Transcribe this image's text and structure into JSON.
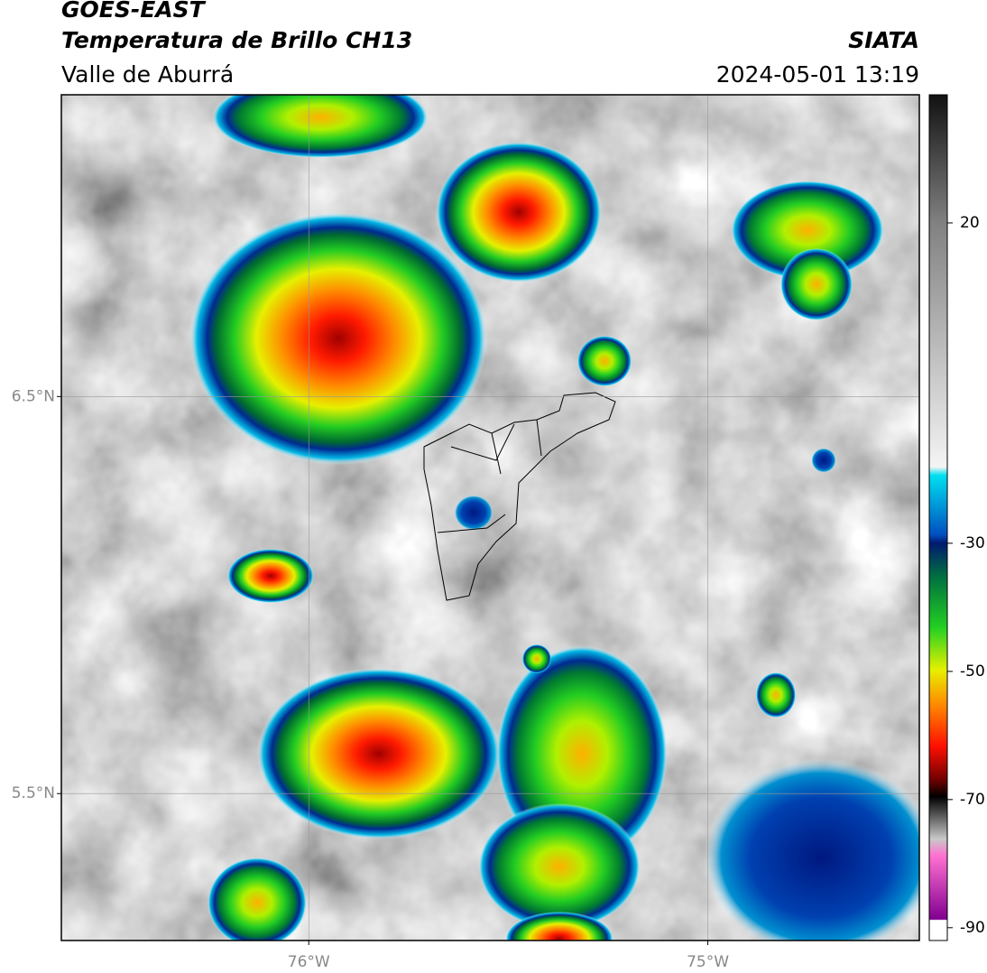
{
  "header": {
    "title": "GOES-EAST",
    "subtitle": "Temperatura de Brillo CH13",
    "region": "Valle de Aburrá",
    "source": "SIATA",
    "datetime": "2024-05-01 13:19"
  },
  "map": {
    "lat_range": [
      5.13,
      7.26
    ],
    "lon_range": [
      -76.62,
      -74.47
    ],
    "lat_ticks": [
      {
        "value": 6.5,
        "label": "6.5°N"
      },
      {
        "value": 5.5,
        "label": "5.5°N"
      }
    ],
    "lon_ticks": [
      {
        "value": -76,
        "label": "76°W"
      },
      {
        "value": -75,
        "label": "75°W"
      }
    ]
  },
  "colorbar": {
    "range": [
      -92,
      40
    ],
    "ticks": [
      20,
      -30,
      -50,
      -70,
      -90
    ]
  }
}
